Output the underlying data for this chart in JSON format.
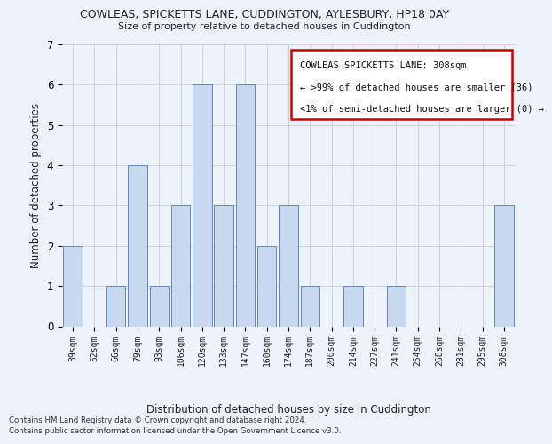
{
  "title1": "COWLEAS, SPICKETTS LANE, CUDDINGTON, AYLESBURY, HP18 0AY",
  "title2": "Size of property relative to detached houses in Cuddington",
  "xlabel": "Distribution of detached houses by size in Cuddington",
  "ylabel": "Number of detached properties",
  "categories": [
    "39sqm",
    "52sqm",
    "66sqm",
    "79sqm",
    "93sqm",
    "106sqm",
    "120sqm",
    "133sqm",
    "147sqm",
    "160sqm",
    "174sqm",
    "187sqm",
    "200sqm",
    "214sqm",
    "227sqm",
    "241sqm",
    "254sqm",
    "268sqm",
    "281sqm",
    "295sqm",
    "308sqm"
  ],
  "values": [
    2,
    0,
    1,
    4,
    1,
    3,
    6,
    3,
    6,
    2,
    3,
    1,
    0,
    1,
    0,
    1,
    0,
    0,
    0,
    0,
    3
  ],
  "bar_color": "#c8d8ee",
  "bar_edge_color": "#5b8cc8",
  "annotation_line1": "COWLEAS SPICKETTS LANE: 308sqm",
  "annotation_line2": "← >99% of detached houses are smaller (36)",
  "annotation_line3": "<1% of semi-detached houses are larger (0) →",
  "annotation_box_color": "#ffffff",
  "annotation_box_edge": "#cc0000",
  "grid_color": "#cccccc",
  "background_color": "#eef2fa",
  "ylim": [
    0,
    7
  ],
  "yticks": [
    0,
    1,
    2,
    3,
    4,
    5,
    6,
    7
  ],
  "footer1": "Contains HM Land Registry data © Crown copyright and database right 2024.",
  "footer2": "Contains public sector information licensed under the Open Government Licence v3.0."
}
